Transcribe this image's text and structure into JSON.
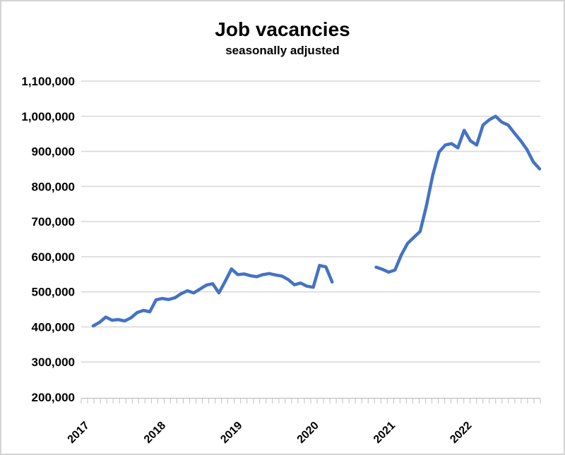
{
  "chart_data": {
    "type": "line",
    "title": "Job vacancies",
    "subtitle": "seasonally adjusted",
    "legend": "none",
    "grid": "horizontal",
    "line_color": "#4472C4",
    "gridline_color": "#d9d9d9",
    "axis_color": "#c0c0c0",
    "y_axis": {
      "min": 200000,
      "max": 1100000,
      "step": 100000,
      "tick_labels": [
        "200,000",
        "300,000",
        "400,000",
        "500,000",
        "600,000",
        "700,000",
        "800,000",
        "900,000",
        "1,000,000",
        "1,100,000"
      ]
    },
    "x_axis": {
      "unit": "month",
      "range": [
        "2017-01",
        "2022-12"
      ],
      "year_labels": [
        "2017",
        "2018",
        "2019",
        "2020",
        "2021",
        "2022"
      ],
      "minor_ticks": "monthly"
    },
    "gap": {
      "note": "no data plotted",
      "from": "2020-04",
      "to": "2020-09"
    },
    "series": [
      {
        "name": "job-vacancies-2017-01-to-2020-03",
        "start_month": "2017-01",
        "values": [
          403000,
          413000,
          428000,
          419000,
          421000,
          417000,
          426000,
          441000,
          447000,
          443000,
          477000,
          481000,
          478000,
          483000,
          495000,
          503000,
          497000,
          508000,
          519000,
          523000,
          497000,
          530000,
          565000,
          549000,
          551000,
          546000,
          543000,
          549000,
          552000,
          548000,
          545000,
          535000,
          520000,
          525000,
          516000,
          513000,
          575000,
          571000,
          528000
        ]
      },
      {
        "name": "job-vacancies-2020-10-to-2022-12",
        "start_month": "2020-10",
        "values": [
          570000,
          564000,
          556000,
          562000,
          605000,
          638000,
          655000,
          672000,
          745000,
          832000,
          898000,
          918000,
          922000,
          910000,
          960000,
          930000,
          918000,
          975000,
          990000,
          1000000,
          983000,
          975000,
          952000,
          930000,
          905000,
          870000,
          850000
        ]
      }
    ]
  }
}
